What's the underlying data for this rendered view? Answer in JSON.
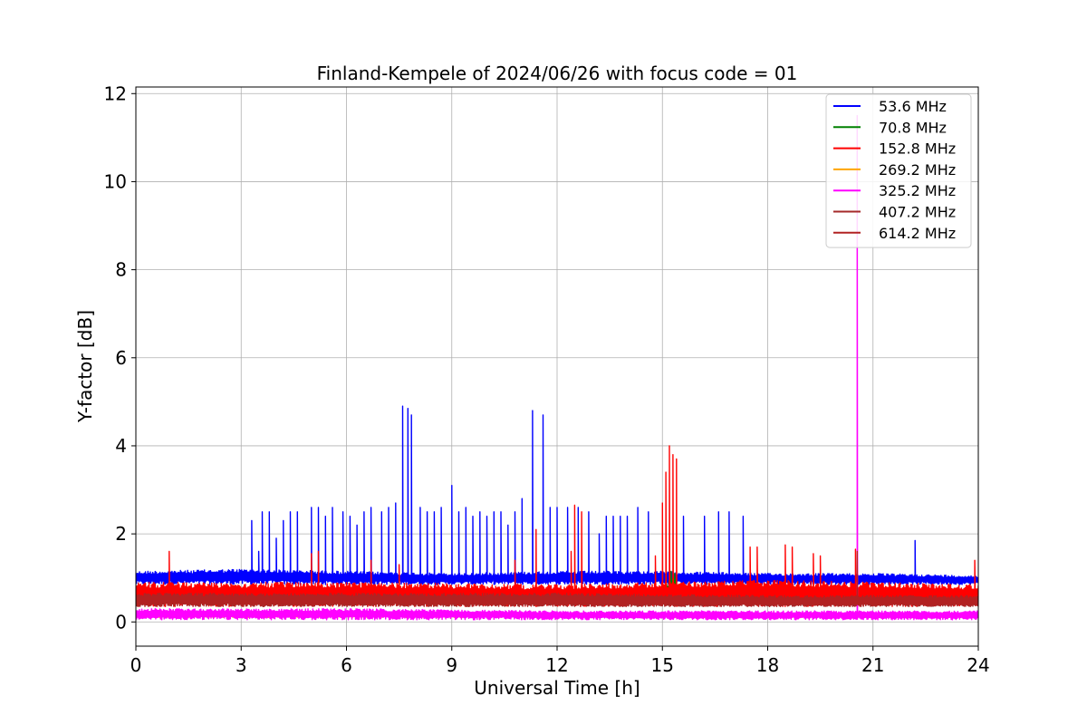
{
  "chart_data": {
    "type": "line",
    "title": "Finland-Kempele of 2024/06/26 with focus code = 01",
    "xlabel": "Universal Time [h]",
    "ylabel": "Y-factor [dB]",
    "xlim": [
      0,
      24
    ],
    "ylim": [
      -0.55,
      12.15
    ],
    "xticks": [
      0,
      3,
      6,
      9,
      12,
      15,
      18,
      21,
      24
    ],
    "yticks": [
      0,
      2,
      4,
      6,
      8,
      10,
      12
    ],
    "grid": true,
    "legend_position": "top-right",
    "series": [
      {
        "name": " 53.6 MHz",
        "color": "#0000ff",
        "baseline": {
          "x": [
            0,
            3,
            6,
            9,
            12,
            15,
            18,
            21,
            24
          ],
          "y": [
            1.15,
            1.2,
            1.15,
            1.1,
            1.15,
            1.15,
            1.1,
            1.1,
            1.05
          ]
        },
        "floor": 0.85,
        "spikes": [
          [
            3.3,
            2.3
          ],
          [
            3.5,
            1.6
          ],
          [
            3.6,
            2.5
          ],
          [
            3.8,
            2.5
          ],
          [
            4.0,
            1.9
          ],
          [
            4.2,
            2.3
          ],
          [
            4.4,
            2.5
          ],
          [
            4.6,
            2.5
          ],
          [
            5.0,
            2.6
          ],
          [
            5.2,
            2.6
          ],
          [
            5.4,
            2.4
          ],
          [
            5.6,
            2.6
          ],
          [
            5.9,
            2.5
          ],
          [
            6.1,
            2.4
          ],
          [
            6.3,
            2.2
          ],
          [
            6.5,
            2.5
          ],
          [
            6.7,
            2.6
          ],
          [
            7.0,
            2.5
          ],
          [
            7.2,
            2.6
          ],
          [
            7.4,
            2.7
          ],
          [
            7.6,
            4.9
          ],
          [
            7.75,
            4.85
          ],
          [
            7.85,
            4.7
          ],
          [
            8.1,
            2.6
          ],
          [
            8.3,
            2.5
          ],
          [
            8.5,
            2.5
          ],
          [
            8.7,
            2.6
          ],
          [
            9.0,
            3.1
          ],
          [
            9.2,
            2.5
          ],
          [
            9.4,
            2.6
          ],
          [
            9.6,
            2.4
          ],
          [
            9.8,
            2.5
          ],
          [
            10.0,
            2.4
          ],
          [
            10.2,
            2.5
          ],
          [
            10.4,
            2.5
          ],
          [
            10.6,
            2.2
          ],
          [
            10.8,
            2.5
          ],
          [
            11.0,
            2.8
          ],
          [
            11.3,
            4.8
          ],
          [
            11.6,
            4.7
          ],
          [
            11.8,
            2.6
          ],
          [
            12.0,
            2.6
          ],
          [
            12.3,
            2.6
          ],
          [
            12.6,
            2.6
          ],
          [
            12.9,
            2.5
          ],
          [
            13.2,
            2.0
          ],
          [
            13.4,
            2.4
          ],
          [
            13.6,
            2.4
          ],
          [
            13.8,
            2.4
          ],
          [
            14.0,
            2.4
          ],
          [
            14.3,
            2.6
          ],
          [
            14.6,
            2.5
          ],
          [
            15.6,
            2.4
          ],
          [
            16.2,
            2.4
          ],
          [
            16.6,
            2.5
          ],
          [
            16.9,
            2.5
          ],
          [
            17.3,
            2.4
          ],
          [
            22.2,
            1.85
          ]
        ]
      },
      {
        "name": " 70.8 MHz",
        "color": "#008000",
        "baseline": {
          "x": [
            0,
            14.9,
            15.0,
            15.4,
            15.5,
            24
          ],
          "y": [
            0.6,
            0.65,
            0.85,
            1.05,
            0.6,
            0.55
          ]
        },
        "floor": 0.45,
        "spikes": [
          [
            15.1,
            1.05
          ],
          [
            15.25,
            1.15
          ],
          [
            15.35,
            1.1
          ]
        ]
      },
      {
        "name": " 152.8 MHz",
        "color": "#ff0000",
        "baseline": {
          "x": [
            0,
            6,
            12,
            15,
            18,
            24
          ],
          "y": [
            0.9,
            0.9,
            0.85,
            0.9,
            0.95,
            0.85
          ]
        },
        "floor": 0.35,
        "spikes": [
          [
            0.95,
            1.6
          ],
          [
            5.0,
            1.55
          ],
          [
            5.2,
            1.6
          ],
          [
            6.7,
            1.4
          ],
          [
            7.5,
            1.3
          ],
          [
            10.8,
            1.4
          ],
          [
            11.4,
            2.1
          ],
          [
            12.4,
            1.6
          ],
          [
            12.5,
            2.65
          ],
          [
            12.7,
            2.5
          ],
          [
            14.8,
            1.5
          ],
          [
            15.0,
            2.7
          ],
          [
            15.1,
            3.4
          ],
          [
            15.2,
            4.0
          ],
          [
            15.3,
            3.8
          ],
          [
            15.4,
            3.7
          ],
          [
            17.5,
            1.7
          ],
          [
            17.7,
            1.7
          ],
          [
            18.5,
            1.75
          ],
          [
            18.7,
            1.7
          ],
          [
            19.3,
            1.55
          ],
          [
            19.5,
            1.5
          ],
          [
            20.5,
            1.65
          ],
          [
            23.9,
            1.4
          ]
        ]
      },
      {
        "name": " 269.2 MHz",
        "color": "#ffa500",
        "baseline": {
          "x": [
            0,
            12,
            24
          ],
          "y": [
            0.2,
            0.2,
            0.2
          ]
        },
        "floor": 0.1,
        "spikes": []
      },
      {
        "name": " 325.2 MHz",
        "color": "#ff00ff",
        "baseline": {
          "x": [
            0,
            6,
            12,
            18,
            24
          ],
          "y": [
            0.3,
            0.3,
            0.25,
            0.25,
            0.25
          ]
        },
        "floor": 0.05,
        "spikes": [
          [
            20.55,
            11.5
          ]
        ]
      },
      {
        "name": " 407.2 MHz",
        "color": "#a52a2a",
        "baseline": {
          "x": [
            0,
            6,
            12,
            18,
            24
          ],
          "y": [
            0.6,
            0.6,
            0.55,
            0.55,
            0.55
          ]
        },
        "floor": 0.35,
        "spikes": []
      },
      {
        "name": " 614.2 MHz",
        "color": "#b22222",
        "baseline": {
          "x": [
            0,
            6,
            12,
            18,
            24
          ],
          "y": [
            0.65,
            0.65,
            0.65,
            0.6,
            0.6
          ]
        },
        "floor": 0.35,
        "spikes": [
          [
            20.55,
            1.6
          ]
        ]
      }
    ]
  }
}
